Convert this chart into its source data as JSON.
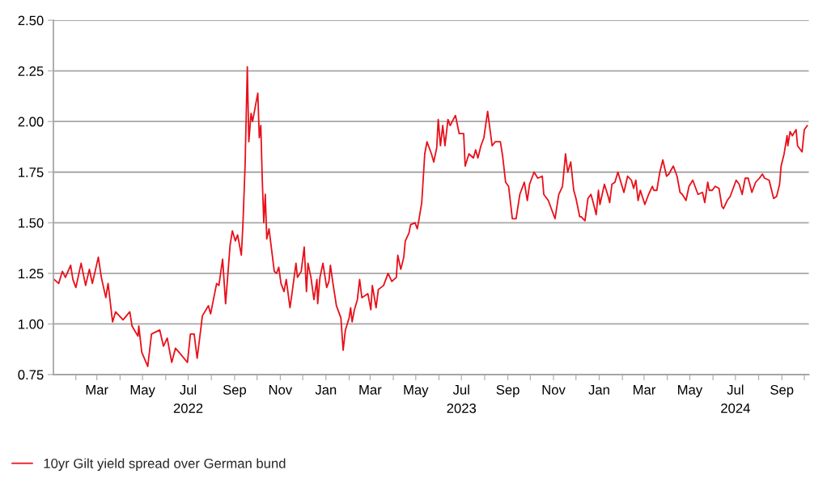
{
  "chart_data": {
    "type": "line",
    "x": [
      "2022-01-03",
      "2022-01-09",
      "2022-01-14",
      "2022-01-18",
      "2022-01-25",
      "2022-01-28",
      "2022-02-01",
      "2022-02-08",
      "2022-02-14",
      "2022-02-19",
      "2022-02-23",
      "2022-03-03",
      "2022-03-07",
      "2022-03-13",
      "2022-03-16",
      "2022-03-22",
      "2022-03-26",
      "2022-04-05",
      "2022-04-14",
      "2022-04-17",
      "2022-04-25",
      "2022-04-26",
      "2022-04-30",
      "2022-05-08",
      "2022-05-13",
      "2022-05-24",
      "2022-05-29",
      "2022-06-03",
      "2022-06-09",
      "2022-06-14",
      "2022-06-21",
      "2022-06-30",
      "2022-07-04",
      "2022-07-09",
      "2022-07-13",
      "2022-07-20",
      "2022-07-28",
      "2022-07-31",
      "2022-08-08",
      "2022-08-11",
      "2022-08-16",
      "2022-08-20",
      "2022-08-26",
      "2022-08-29",
      "2022-09-02",
      "2022-09-05",
      "2022-09-10",
      "2022-09-12",
      "2022-09-15",
      "2022-09-18",
      "2022-09-20",
      "2022-09-23",
      "2022-09-25",
      "2022-09-29",
      "2022-10-02",
      "2022-10-04",
      "2022-10-06",
      "2022-10-08",
      "2022-10-10",
      "2022-10-12",
      "2022-10-14",
      "2022-10-17",
      "2022-10-20",
      "2022-10-24",
      "2022-10-27",
      "2022-10-30",
      "2022-11-02",
      "2022-11-06",
      "2022-11-09",
      "2022-11-14",
      "2022-11-17",
      "2022-11-22",
      "2022-11-24",
      "2022-11-29",
      "2022-12-03",
      "2022-12-06",
      "2022-12-08",
      "2022-12-12",
      "2022-12-16",
      "2022-12-20",
      "2022-12-21",
      "2022-12-24",
      "2022-12-28",
      "2023-01-02",
      "2023-01-05",
      "2023-01-07",
      "2023-01-10",
      "2023-01-15",
      "2023-01-21",
      "2023-01-24",
      "2023-01-27",
      "2023-02-01",
      "2023-02-03",
      "2023-02-05",
      "2023-02-08",
      "2023-02-12",
      "2023-02-15",
      "2023-02-18",
      "2023-02-26",
      "2023-03-02",
      "2023-03-04",
      "2023-03-09",
      "2023-03-12",
      "2023-03-19",
      "2023-03-25",
      "2023-03-30",
      "2023-04-05",
      "2023-04-07",
      "2023-04-11",
      "2023-04-15",
      "2023-04-17",
      "2023-04-22",
      "2023-04-24",
      "2023-04-30",
      "2023-05-03",
      "2023-05-05",
      "2023-05-09",
      "2023-05-13",
      "2023-05-16",
      "2023-05-22",
      "2023-05-25",
      "2023-05-29",
      "2023-05-31",
      "2023-06-03",
      "2023-06-06",
      "2023-06-09",
      "2023-06-13",
      "2023-06-16",
      "2023-06-23",
      "2023-06-28",
      "2023-07-04",
      "2023-07-06",
      "2023-07-11",
      "2023-07-17",
      "2023-07-20",
      "2023-07-23",
      "2023-07-27",
      "2023-07-31",
      "2023-08-05",
      "2023-08-11",
      "2023-08-15",
      "2023-08-22",
      "2023-08-25",
      "2023-08-29",
      "2023-09-02",
      "2023-09-07",
      "2023-09-12",
      "2023-09-17",
      "2023-09-23",
      "2023-09-27",
      "2023-09-30",
      "2023-10-06",
      "2023-10-11",
      "2023-10-17",
      "2023-10-19",
      "2023-10-25",
      "2023-10-28",
      "2023-11-03",
      "2023-11-08",
      "2023-11-13",
      "2023-11-17",
      "2023-11-20",
      "2023-11-24",
      "2023-11-28",
      "2023-12-01",
      "2023-12-06",
      "2023-12-08",
      "2023-12-13",
      "2023-12-17",
      "2023-12-21",
      "2023-12-24",
      "2023-12-28",
      "2023-12-31",
      "2024-01-02",
      "2024-01-08",
      "2024-01-13",
      "2024-01-15",
      "2024-01-18",
      "2024-01-22",
      "2024-01-26",
      "2024-01-30",
      "2024-02-03",
      "2024-02-08",
      "2024-02-13",
      "2024-02-16",
      "2024-02-19",
      "2024-02-22",
      "2024-02-25",
      "2024-03-02",
      "2024-03-07",
      "2024-03-12",
      "2024-03-14",
      "2024-03-18",
      "2024-03-22",
      "2024-03-26",
      "2024-03-31",
      "2024-04-03",
      "2024-04-09",
      "2024-04-14",
      "2024-04-18",
      "2024-04-21",
      "2024-04-26",
      "2024-04-30",
      "2024-05-05",
      "2024-05-09",
      "2024-05-12",
      "2024-05-18",
      "2024-05-21",
      "2024-05-25",
      "2024-05-27",
      "2024-05-31",
      "2024-06-04",
      "2024-06-09",
      "2024-06-13",
      "2024-06-15",
      "2024-06-20",
      "2024-06-24",
      "2024-06-27",
      "2024-07-02",
      "2024-07-06",
      "2024-07-10",
      "2024-07-14",
      "2024-07-18",
      "2024-07-23",
      "2024-07-28",
      "2024-08-02",
      "2024-08-06",
      "2024-08-09",
      "2024-08-15",
      "2024-08-17",
      "2024-08-21",
      "2024-08-25",
      "2024-08-29",
      "2024-08-31",
      "2024-09-04",
      "2024-09-08",
      "2024-09-09",
      "2024-09-12",
      "2024-09-15",
      "2024-09-20",
      "2024-09-22",
      "2024-09-28",
      "2024-10-01",
      "2024-10-05"
    ],
    "series": [
      {
        "name": "10yr Gilt yield spread over German bund",
        "color": "#e8101a",
        "values": [
          1.22,
          1.2,
          1.26,
          1.23,
          1.29,
          1.22,
          1.18,
          1.3,
          1.19,
          1.27,
          1.2,
          1.33,
          1.23,
          1.13,
          1.2,
          1.01,
          1.06,
          1.02,
          1.06,
          0.99,
          0.94,
          0.99,
          0.86,
          0.79,
          0.95,
          0.97,
          0.89,
          0.93,
          0.81,
          0.88,
          0.85,
          0.81,
          0.95,
          0.95,
          0.83,
          1.04,
          1.09,
          1.05,
          1.2,
          1.19,
          1.32,
          1.1,
          1.39,
          1.46,
          1.41,
          1.44,
          1.34,
          1.48,
          1.78,
          2.27,
          1.9,
          2.04,
          2.0,
          2.08,
          2.14,
          1.92,
          1.98,
          1.71,
          1.5,
          1.64,
          1.42,
          1.47,
          1.38,
          1.26,
          1.25,
          1.28,
          1.2,
          1.16,
          1.22,
          1.08,
          1.16,
          1.3,
          1.23,
          1.26,
          1.38,
          1.16,
          1.3,
          1.23,
          1.12,
          1.22,
          1.1,
          1.23,
          1.3,
          1.18,
          1.21,
          1.29,
          1.21,
          1.09,
          1.03,
          0.87,
          0.97,
          1.03,
          1.08,
          1.01,
          1.07,
          1.12,
          1.22,
          1.13,
          1.15,
          1.07,
          1.19,
          1.08,
          1.17,
          1.19,
          1.25,
          1.21,
          1.23,
          1.34,
          1.27,
          1.33,
          1.41,
          1.45,
          1.49,
          1.5,
          1.47,
          1.51,
          1.6,
          1.84,
          1.9,
          1.84,
          1.8,
          1.87,
          2.01,
          1.88,
          1.98,
          1.88,
          2.01,
          1.98,
          2.03,
          1.94,
          1.94,
          1.78,
          1.84,
          1.82,
          1.86,
          1.82,
          1.88,
          1.92,
          2.05,
          1.88,
          1.9,
          1.9,
          1.83,
          1.7,
          1.68,
          1.52,
          1.52,
          1.64,
          1.7,
          1.61,
          1.69,
          1.75,
          1.72,
          1.73,
          1.64,
          1.61,
          1.58,
          1.52,
          1.64,
          1.68,
          1.84,
          1.75,
          1.8,
          1.66,
          1.62,
          1.53,
          1.53,
          1.51,
          1.62,
          1.64,
          1.6,
          1.54,
          1.66,
          1.59,
          1.69,
          1.63,
          1.6,
          1.69,
          1.7,
          1.75,
          1.7,
          1.65,
          1.73,
          1.71,
          1.67,
          1.71,
          1.61,
          1.66,
          1.59,
          1.64,
          1.68,
          1.66,
          1.66,
          1.75,
          1.81,
          1.73,
          1.74,
          1.78,
          1.73,
          1.65,
          1.64,
          1.61,
          1.68,
          1.71,
          1.67,
          1.64,
          1.65,
          1.6,
          1.7,
          1.66,
          1.66,
          1.68,
          1.67,
          1.58,
          1.57,
          1.61,
          1.63,
          1.66,
          1.71,
          1.69,
          1.64,
          1.72,
          1.72,
          1.65,
          1.7,
          1.72,
          1.74,
          1.72,
          1.71,
          1.68,
          1.62,
          1.63,
          1.69,
          1.78,
          1.84,
          1.93,
          1.88,
          1.95,
          1.93,
          1.96,
          1.88,
          1.85,
          1.96,
          1.98
        ]
      }
    ],
    "xlim": [
      "2022-01-02",
      "2024-10-07"
    ],
    "xticks": [
      {
        "value": "2022-02-01",
        "label": null
      },
      {
        "value": "2022-03-01",
        "label": "Mar"
      },
      {
        "value": "2022-04-01",
        "label": null
      },
      {
        "value": "2022-05-01",
        "label": "May"
      },
      {
        "value": "2022-06-01",
        "label": null
      },
      {
        "value": "2022-07-01",
        "label": "Jul\n2022"
      },
      {
        "value": "2022-08-01",
        "label": null
      },
      {
        "value": "2022-09-01",
        "label": "Sep"
      },
      {
        "value": "2022-10-01",
        "label": null
      },
      {
        "value": "2022-11-01",
        "label": "Nov"
      },
      {
        "value": "2022-12-01",
        "label": null
      },
      {
        "value": "2023-01-01",
        "label": "Jan"
      },
      {
        "value": "2023-02-01",
        "label": null
      },
      {
        "value": "2023-03-01",
        "label": "Mar"
      },
      {
        "value": "2023-04-01",
        "label": null
      },
      {
        "value": "2023-05-01",
        "label": "May"
      },
      {
        "value": "2023-06-01",
        "label": null
      },
      {
        "value": "2023-07-01",
        "label": "Jul\n2023"
      },
      {
        "value": "2023-08-01",
        "label": null
      },
      {
        "value": "2023-09-01",
        "label": "Sep"
      },
      {
        "value": "2023-10-01",
        "label": null
      },
      {
        "value": "2023-11-01",
        "label": "Nov"
      },
      {
        "value": "2023-12-01",
        "label": null
      },
      {
        "value": "2024-01-01",
        "label": "Jan"
      },
      {
        "value": "2024-02-01",
        "label": null
      },
      {
        "value": "2024-03-01",
        "label": "Mar"
      },
      {
        "value": "2024-04-01",
        "label": null
      },
      {
        "value": "2024-05-01",
        "label": "May"
      },
      {
        "value": "2024-06-01",
        "label": null
      },
      {
        "value": "2024-07-01",
        "label": "Jul\n2024"
      },
      {
        "value": "2024-08-01",
        "label": null
      },
      {
        "value": "2024-09-01",
        "label": "Sep"
      },
      {
        "value": "2024-10-01",
        "label": null
      }
    ],
    "ylim": [
      0.75,
      2.5
    ],
    "yticks": [
      {
        "value": 0.75,
        "label": "0.75"
      },
      {
        "value": 1.0,
        "label": "1.00"
      },
      {
        "value": 1.25,
        "label": "1.25"
      },
      {
        "value": 1.5,
        "label": "1.50"
      },
      {
        "value": 1.75,
        "label": "1.75"
      },
      {
        "value": 2.0,
        "label": "2.00"
      },
      {
        "value": 2.25,
        "label": "2.25"
      },
      {
        "value": 2.5,
        "label": "2.50"
      }
    ],
    "grid": "y",
    "legend": "bottom left",
    "line_style": "solid",
    "marker": "none"
  }
}
